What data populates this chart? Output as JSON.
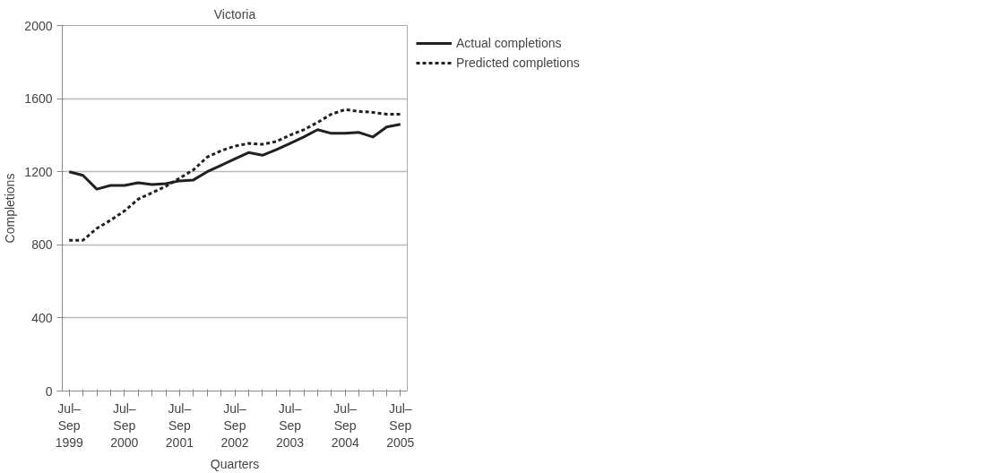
{
  "chart_data": {
    "type": "line",
    "title": "Victoria",
    "xlabel": "Quarters",
    "ylabel": "Completions",
    "categories": [
      "Jul–\nSep\n1999",
      null,
      null,
      null,
      "Jul–\nSep\n2000",
      null,
      null,
      null,
      "Jul–\nSep\n2001",
      null,
      null,
      null,
      "Jul–\nSep\n2002",
      null,
      null,
      null,
      "Jul–\nSep\n2003",
      null,
      null,
      null,
      "Jul–\nSep\n2004",
      null,
      null,
      null,
      "Jul–\nSep\n2005"
    ],
    "series": [
      {
        "name": "Actual completions",
        "color": "#231f20",
        "line_style": "solid",
        "values": [
          1200,
          1180,
          1105,
          1125,
          1125,
          1140,
          1130,
          1135,
          1150,
          1155,
          1200,
          1235,
          1270,
          1305,
          1290,
          1320,
          1355,
          1390,
          1430,
          1410,
          1410,
          1415,
          1390,
          1445,
          1460
        ]
      },
      {
        "name": "Predicted completions",
        "color": "#231f20",
        "line_style": "dashed",
        "values": [
          825,
          825,
          890,
          935,
          985,
          1050,
          1085,
          1120,
          1165,
          1210,
          1280,
          1315,
          1340,
          1355,
          1350,
          1365,
          1400,
          1430,
          1470,
          1515,
          1540,
          1530,
          1525,
          1515,
          1515
        ]
      }
    ],
    "ylim": [
      0,
      2000
    ],
    "yticks": [
      0,
      400,
      800,
      1200,
      1600,
      2000
    ],
    "grid": "y",
    "legend": "top right",
    "marker": "none"
  }
}
